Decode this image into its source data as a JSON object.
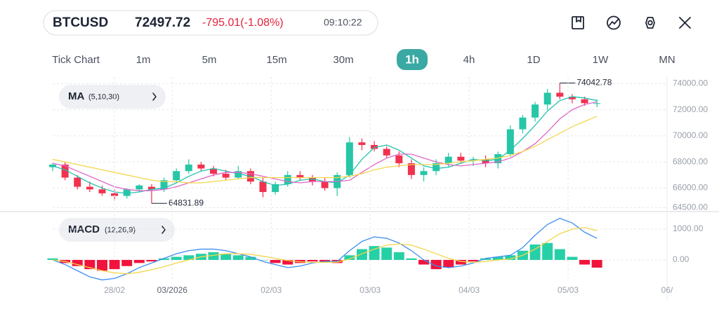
{
  "header": {
    "symbol": "BTCUSD",
    "price": 72497.72,
    "change": "-795.01(-1.08%)",
    "time": "09:10:22"
  },
  "timeframes": {
    "items": [
      "Tick Chart",
      "1m",
      "5m",
      "15m",
      "30m",
      "1h",
      "4h",
      "1D",
      "1W",
      "MN"
    ],
    "active": 5
  },
  "chart_data": [
    {
      "type": "candlestick",
      "indicator": "MA",
      "params": "(5,10,30)",
      "up_color": "#26c6a6",
      "down_color": "#f0324f",
      "x": [
        0,
        3,
        6,
        9,
        12,
        15,
        18,
        21,
        24,
        27,
        30,
        33,
        36,
        39,
        42,
        45,
        48,
        51,
        54,
        57,
        60,
        63,
        66,
        69,
        72,
        75,
        78,
        81,
        84,
        87,
        90,
        93,
        96,
        99,
        102,
        105,
        108,
        111,
        114,
        117,
        120,
        123,
        126,
        129,
        132
      ],
      "ohlc": [
        [
          67600,
          67900,
          67300,
          67800
        ],
        [
          67800,
          68000,
          66600,
          66800
        ],
        [
          66800,
          67000,
          65900,
          66100
        ],
        [
          66100,
          66500,
          65700,
          65900
        ],
        [
          65900,
          66200,
          65400,
          65600
        ],
        [
          65600,
          65900,
          65000,
          65400
        ],
        [
          65400,
          66000,
          65200,
          65900
        ],
        [
          65900,
          66300,
          65700,
          66200
        ],
        [
          66100,
          66300,
          64831.89,
          65900
        ],
        [
          65900,
          66800,
          65700,
          66600
        ],
        [
          66600,
          67500,
          66400,
          67300
        ],
        [
          67300,
          68200,
          67100,
          67800
        ],
        [
          67800,
          68000,
          67300,
          67500
        ],
        [
          67500,
          67700,
          66900,
          67100
        ],
        [
          67100,
          67400,
          66600,
          66800
        ],
        [
          66800,
          67700,
          66700,
          67300
        ],
        [
          67300,
          67500,
          66300,
          66500
        ],
        [
          66500,
          66800,
          65300,
          65700
        ],
        [
          65700,
          66500,
          65500,
          66300
        ],
        [
          66300,
          67300,
          66100,
          67000
        ],
        [
          67000,
          67300,
          66600,
          66800
        ],
        [
          66800,
          67000,
          66200,
          66500
        ],
        [
          66500,
          66800,
          65800,
          66000
        ],
        [
          66000,
          67200,
          65400,
          67000
        ],
        [
          67000,
          69900,
          66800,
          69500
        ],
        [
          69500,
          69800,
          68900,
          69300
        ],
        [
          69300,
          69600,
          68800,
          69000
        ],
        [
          69000,
          69200,
          68300,
          68500
        ],
        [
          68500,
          68800,
          67600,
          67900
        ],
        [
          67900,
          68200,
          66700,
          67000
        ],
        [
          67000,
          67600,
          66500,
          67300
        ],
        [
          67300,
          68200,
          67000,
          67900
        ],
        [
          67900,
          68700,
          67600,
          68400
        ],
        [
          68400,
          68700,
          67900,
          68100
        ],
        [
          68100,
          68400,
          67700,
          68200
        ],
        [
          68200,
          68500,
          67600,
          67900
        ],
        [
          67900,
          68800,
          67500,
          68600
        ],
        [
          68600,
          70800,
          68400,
          70500
        ],
        [
          70500,
          71600,
          70200,
          71400
        ],
        [
          71400,
          72600,
          71100,
          72400
        ],
        [
          72400,
          73600,
          72000,
          73300
        ],
        [
          73300,
          74042.78,
          72800,
          73000
        ],
        [
          73000,
          73200,
          72500,
          72800
        ],
        [
          72800,
          73000,
          72300,
          72500
        ],
        [
          72500,
          72800,
          72200,
          72500
        ]
      ],
      "lines": [
        {
          "color": "#22c3b0",
          "values": [
            67700,
            67400,
            66900,
            66400,
            66000,
            65700,
            65600,
            65700,
            65900,
            66000,
            66400,
            66900,
            67300,
            67500,
            67300,
            67100,
            66900,
            66500,
            66200,
            66300,
            66600,
            66700,
            66500,
            66400,
            67000,
            68200,
            69100,
            69300,
            68900,
            68300,
            67700,
            67500,
            67600,
            67900,
            68200,
            68100,
            68200,
            68900,
            69800,
            70800,
            71900,
            72700,
            73000,
            72900,
            72700
          ]
        },
        {
          "color": "#e066c8",
          "values": [
            67900,
            67700,
            67300,
            66900,
            66500,
            66100,
            65900,
            65800,
            65800,
            65900,
            66100,
            66400,
            66700,
            67000,
            67200,
            67200,
            67100,
            66900,
            66700,
            66500,
            66400,
            66500,
            66500,
            66500,
            66600,
            67200,
            67800,
            68300,
            68600,
            68600,
            68300,
            68000,
            67800,
            67700,
            67800,
            67900,
            68000,
            68300,
            68800,
            69400,
            70300,
            71300,
            72000,
            72400,
            72600
          ]
        },
        {
          "color": "#f2d64b",
          "values": [
            68200,
            68000,
            67800,
            67600,
            67400,
            67200,
            67000,
            66800,
            66600,
            66500,
            66500,
            66400,
            66400,
            66500,
            66600,
            66700,
            66800,
            66800,
            66800,
            66800,
            66800,
            66800,
            66800,
            66800,
            66900,
            67100,
            67400,
            67600,
            67700,
            67800,
            67800,
            67800,
            67900,
            68000,
            68100,
            68200,
            68300,
            68500,
            68800,
            69200,
            69700,
            70200,
            70700,
            71100,
            71500
          ]
        }
      ],
      "xlim": [
        0,
        149
      ],
      "ylim": [
        64200,
        74500
      ],
      "yticks": [
        {
          "value": 64500,
          "label": "64500.00"
        },
        {
          "value": 66000,
          "label": "66000.00"
        },
        {
          "value": 68000,
          "label": "68000.00"
        },
        {
          "value": 70000,
          "label": "70000.00"
        },
        {
          "value": 72000,
          "label": "72000.00"
        },
        {
          "value": 74000,
          "label": "74000.00"
        }
      ],
      "grid": true
    },
    {
      "type": "macd",
      "indicator": "MACD",
      "params": "(12,26,9)",
      "up_color": "#26d0a6",
      "down_color": "#f0143c",
      "x": [
        0,
        3,
        6,
        9,
        12,
        15,
        18,
        21,
        24,
        27,
        30,
        33,
        36,
        39,
        42,
        45,
        48,
        51,
        54,
        57,
        60,
        63,
        66,
        69,
        72,
        75,
        78,
        81,
        84,
        87,
        90,
        93,
        96,
        99,
        102,
        105,
        108,
        111,
        114,
        117,
        120,
        123,
        126,
        129,
        132
      ],
      "histogram": [
        50,
        -100,
        -200,
        -300,
        -350,
        -300,
        -200,
        -100,
        -50,
        50,
        100,
        150,
        200,
        250,
        200,
        150,
        100,
        0,
        -100,
        -150,
        -100,
        -50,
        -50,
        -100,
        150,
        350,
        450,
        400,
        250,
        50,
        -150,
        -300,
        -250,
        -150,
        -50,
        50,
        100,
        150,
        300,
        500,
        550,
        350,
        100,
        -150,
        -250
      ],
      "lines": [
        {
          "color": "#3d8ef0",
          "values": [
            0,
            -150,
            -350,
            -550,
            -650,
            -600,
            -450,
            -250,
            -100,
            50,
            200,
            300,
            350,
            350,
            300,
            200,
            100,
            -50,
            -150,
            -250,
            -200,
            -100,
            -50,
            -50,
            300,
            600,
            750,
            700,
            550,
            300,
            0,
            -200,
            -250,
            -200,
            -100,
            50,
            100,
            150,
            400,
            800,
            1150,
            1350,
            1200,
            900,
            700
          ]
        },
        {
          "color": "#f2d64b",
          "values": [
            0,
            -50,
            -150,
            -250,
            -350,
            -420,
            -450,
            -400,
            -320,
            -220,
            -100,
            0,
            100,
            150,
            200,
            200,
            180,
            120,
            50,
            -20,
            -60,
            -80,
            -80,
            -70,
            30,
            200,
            350,
            480,
            520,
            480,
            350,
            200,
            50,
            -50,
            -80,
            -50,
            0,
            30,
            150,
            350,
            600,
            850,
            1000,
            1050,
            950
          ]
        }
      ],
      "xlim": [
        0,
        149
      ],
      "ylim": [
        -660,
        1500
      ],
      "yticks": [
        {
          "value": 0,
          "label": "0.00"
        },
        {
          "value": 1000,
          "label": "1000.00"
        }
      ],
      "xticks": [
        {
          "value": 15,
          "label": "28/02"
        },
        {
          "value": 29,
          "label": "03/2026"
        },
        {
          "value": 53,
          "label": "02/03"
        },
        {
          "value": 77,
          "label": "03/03"
        },
        {
          "value": 101,
          "label": "04/03"
        },
        {
          "value": 125,
          "label": "05/03"
        },
        {
          "value": 149,
          "label": "06/"
        }
      ],
      "grid": true
    }
  ]
}
